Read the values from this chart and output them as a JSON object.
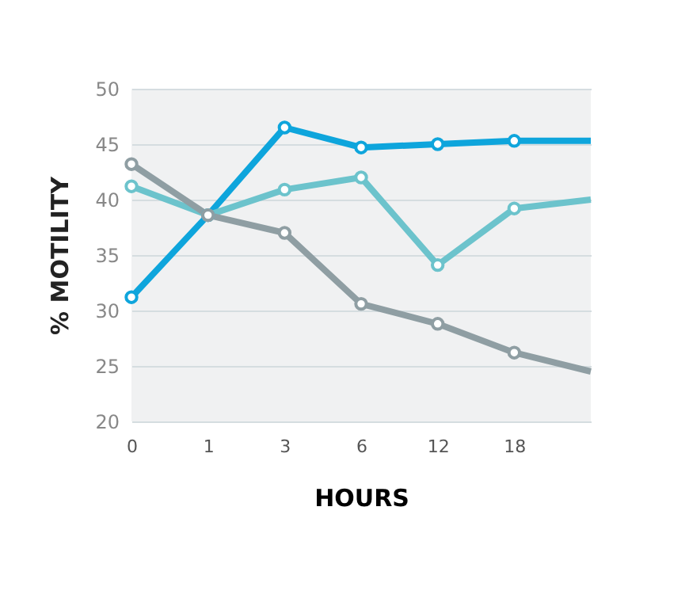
{
  "chart_data": {
    "type": "line",
    "xlabel": "HOURS",
    "ylabel": "% MOTILITY",
    "categories": [
      "0",
      "1",
      "3",
      "6",
      "12",
      "18",
      null
    ],
    "series": [
      {
        "color": "#0ea5dc",
        "values": [
          31.2,
          38.6,
          46.5,
          44.7,
          45.0,
          45.3,
          45.3
        ]
      },
      {
        "color": "#6cc3cc",
        "values": [
          41.2,
          38.6,
          40.9,
          42.0,
          34.1,
          39.2,
          40.0
        ]
      },
      {
        "color": "#8f9ea3",
        "values": [
          43.2,
          38.6,
          37.0,
          30.6,
          28.8,
          26.2,
          24.5
        ]
      }
    ],
    "ylim": [
      20,
      50
    ],
    "yticks": [
      20,
      25,
      30,
      35,
      40,
      45,
      50
    ],
    "grid": "y",
    "marker": "circle",
    "line_style": "solid"
  }
}
